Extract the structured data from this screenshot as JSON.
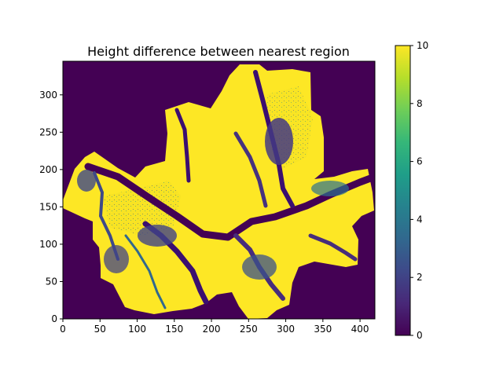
{
  "chart_data": {
    "type": "heatmap",
    "title": "Height difference between nearest region",
    "xlabel": "",
    "ylabel": "",
    "xlim": [
      0,
      420
    ],
    "ylim": [
      0,
      345
    ],
    "x_ticks": [
      0,
      50,
      100,
      150,
      200,
      250,
      300,
      350,
      400
    ],
    "y_ticks": [
      0,
      50,
      100,
      150,
      200,
      250,
      300
    ],
    "colorbar": {
      "min": 0,
      "max": 10,
      "ticks": [
        0,
        2,
        4,
        6,
        8,
        10
      ],
      "colormap": "viridis"
    },
    "colors": {
      "low": "#440154",
      "high": "#fde725",
      "ramp": [
        "#440154",
        "#482878",
        "#3e4989",
        "#31688e",
        "#26828e",
        "#1f9e89",
        "#35b779",
        "#6ece58",
        "#b5de2b",
        "#fde725"
      ]
    },
    "grid": false
  }
}
